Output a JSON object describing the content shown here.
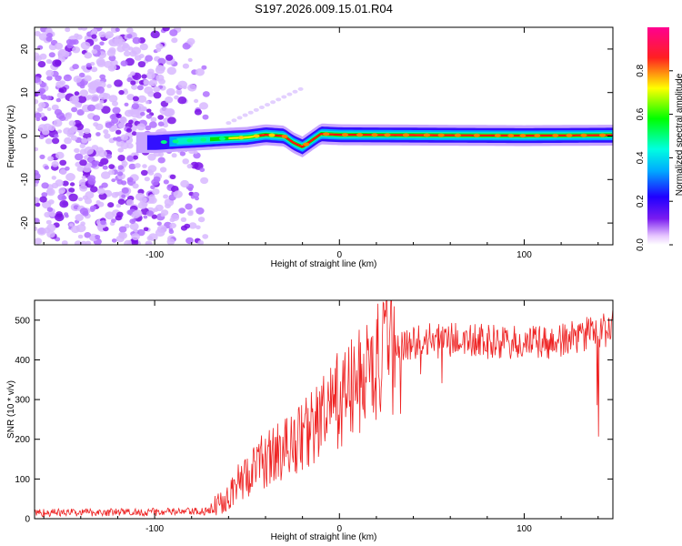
{
  "title": "S197.2026.009.15.01.R04",
  "chart_data": [
    {
      "type": "heatmap",
      "name": "spectrogram",
      "xlabel": "Height of straight line (km)",
      "ylabel": "Frequency (Hz)",
      "xlim": [
        -165,
        148
      ],
      "ylim": [
        -25,
        25
      ],
      "xticks": [
        -100,
        0,
        100
      ],
      "yticks": [
        -20,
        -10,
        0,
        10,
        20
      ],
      "colorbar": {
        "label": "Normalized spectral amplitude",
        "ticks": [
          "0.0",
          "0.2",
          "0.4",
          "0.6",
          "0.8"
        ],
        "range": [
          0,
          1
        ]
      },
      "description_points": {
        "noise_region_x": [
          -165,
          -72
        ],
        "signal_x": [
          -102,
          148
        ],
        "signal_centerline": [
          {
            "x": -100,
            "f": -1.5
          },
          {
            "x": -80,
            "f": -1.0
          },
          {
            "x": -60,
            "f": -0.5
          },
          {
            "x": -50,
            "f": -0.3
          },
          {
            "x": -40,
            "f": 0.3
          },
          {
            "x": -30,
            "f": 0.0
          },
          {
            "x": -25,
            "f": -1.5
          },
          {
            "x": -20,
            "f": -2.5
          },
          {
            "x": -15,
            "f": -1.0
          },
          {
            "x": -10,
            "f": 0.5
          },
          {
            "x": 0,
            "f": 0.3
          },
          {
            "x": 50,
            "f": 0.2
          },
          {
            "x": 100,
            "f": 0.1
          },
          {
            "x": 148,
            "f": 0.2
          }
        ]
      }
    },
    {
      "type": "line",
      "name": "snr",
      "xlabel": "Height of straight line (km)",
      "ylabel": "SNR (10 * v/v)",
      "xlim": [
        -165,
        148
      ],
      "ylim": [
        0,
        550
      ],
      "xticks": [
        -100,
        0,
        100
      ],
      "yticks": [
        0,
        100,
        200,
        300,
        400,
        500
      ],
      "color": "#ee2222",
      "trend": [
        {
          "x": -165,
          "y": 15
        },
        {
          "x": -70,
          "y": 18
        },
        {
          "x": -65,
          "y": 40
        },
        {
          "x": -50,
          "y": 110
        },
        {
          "x": -40,
          "y": 150
        },
        {
          "x": -30,
          "y": 175
        },
        {
          "x": -20,
          "y": 210
        },
        {
          "x": -10,
          "y": 250
        },
        {
          "x": 0,
          "y": 300
        },
        {
          "x": 10,
          "y": 340
        },
        {
          "x": 20,
          "y": 390
        },
        {
          "x": 30,
          "y": 430
        },
        {
          "x": 40,
          "y": 445
        },
        {
          "x": 60,
          "y": 450
        },
        {
          "x": 80,
          "y": 445
        },
        {
          "x": 100,
          "y": 440
        },
        {
          "x": 120,
          "y": 445
        },
        {
          "x": 130,
          "y": 460
        },
        {
          "x": 140,
          "y": 470
        },
        {
          "x": 148,
          "y": 480
        }
      ]
    }
  ]
}
